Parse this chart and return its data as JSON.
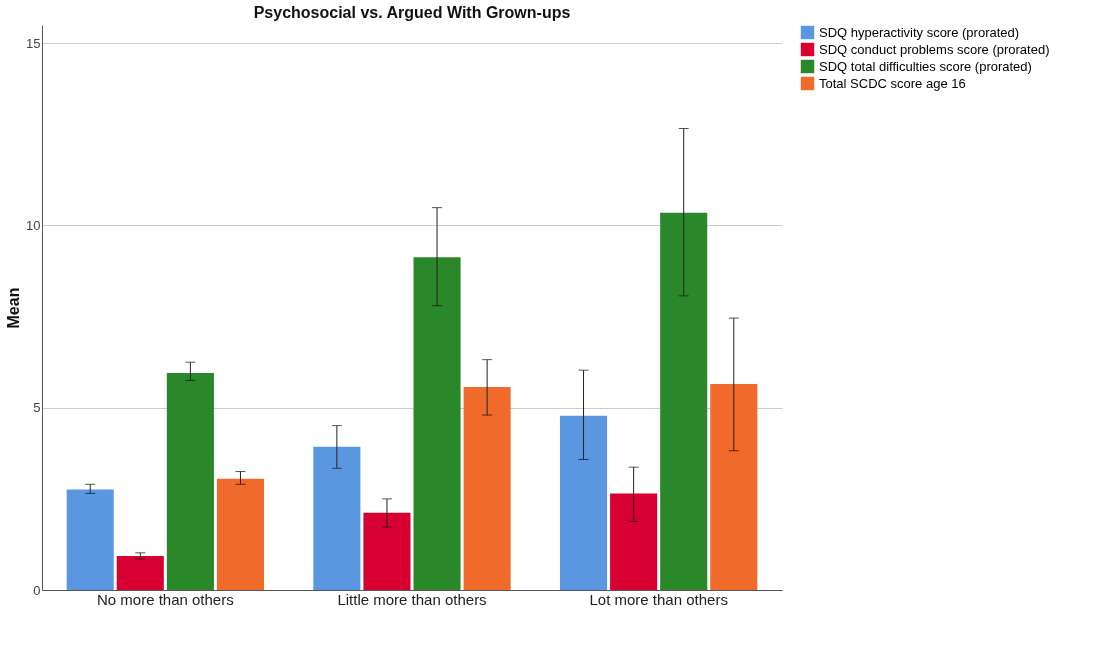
{
  "chart_data": {
    "type": "bar",
    "title": "Psychosocial vs. Argued With Grown-ups",
    "ylabel": "Mean",
    "categories": [
      "No more than others",
      "Little more than others",
      "Lot more than others"
    ],
    "series": [
      {
        "name": "SDQ hyperactivity score (prorated)",
        "color": "#5b96e0",
        "values": [
          2.76,
          3.93,
          4.78
        ],
        "errors": [
          [
            2.65,
            2.9
          ],
          [
            3.34,
            4.51
          ],
          [
            3.58,
            6.03
          ]
        ]
      },
      {
        "name": "SDQ conduct problems score (prorated)",
        "color": "#d80032",
        "values": [
          0.93,
          2.12,
          2.65
        ],
        "errors": [
          [
            0.85,
            1.02
          ],
          [
            1.73,
            2.5
          ],
          [
            1.88,
            3.37
          ]
        ]
      },
      {
        "name": "SDQ total difficulties score (prorated)",
        "color": "#2a882a",
        "values": [
          5.95,
          9.13,
          10.35
        ],
        "errors": [
          [
            5.75,
            6.25
          ],
          [
            7.8,
            10.49
          ],
          [
            8.07,
            12.66
          ]
        ]
      },
      {
        "name": "Total SCDC score age 16",
        "color": "#f06a2c",
        "values": [
          3.05,
          5.57,
          5.65
        ],
        "errors": [
          [
            2.9,
            3.25
          ],
          [
            4.8,
            6.32
          ],
          [
            3.82,
            7.46
          ]
        ]
      }
    ],
    "ylim": [
      0,
      15.5
    ],
    "yticks": [
      0,
      5,
      10,
      15
    ],
    "grid": "y",
    "legend": "top right"
  }
}
